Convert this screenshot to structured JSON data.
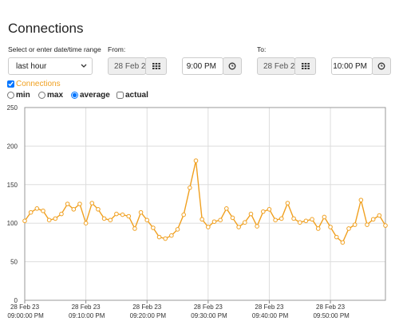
{
  "header": {
    "title": "Connections"
  },
  "controls": {
    "range_label": "Select or enter date/time range",
    "range_value": "last hour",
    "from_label": "From:",
    "from_date": "28 Feb 2",
    "from_time": "9:00 PM",
    "to_label": "To:",
    "to_date": "28 Feb 2",
    "to_time": "10:00 PM"
  },
  "series_toggle": {
    "label": "Connections",
    "checked": true
  },
  "modes": {
    "options": [
      "min",
      "max",
      "average",
      "actual"
    ],
    "selected": 2
  },
  "chart_data": {
    "type": "line",
    "color": "#f0a020",
    "grid": true,
    "x": [
      "28 Feb 23 09:00:00 PM",
      "28 Feb 23 09:01:00 PM",
      "28 Feb 23 09:02:00 PM",
      "28 Feb 23 09:03:00 PM",
      "28 Feb 23 09:04:00 PM",
      "28 Feb 23 09:05:00 PM",
      "28 Feb 23 09:06:00 PM",
      "28 Feb 23 09:07:00 PM",
      "28 Feb 23 09:08:00 PM",
      "28 Feb 23 09:09:00 PM",
      "28 Feb 23 09:10:00 PM",
      "28 Feb 23 09:11:00 PM",
      "28 Feb 23 09:12:00 PM",
      "28 Feb 23 09:13:00 PM",
      "28 Feb 23 09:14:00 PM",
      "28 Feb 23 09:15:00 PM",
      "28 Feb 23 09:16:00 PM",
      "28 Feb 23 09:17:00 PM",
      "28 Feb 23 09:18:00 PM",
      "28 Feb 23 09:19:00 PM",
      "28 Feb 23 09:20:00 PM",
      "28 Feb 23 09:21:00 PM",
      "28 Feb 23 09:22:00 PM",
      "28 Feb 23 09:23:00 PM",
      "28 Feb 23 09:24:00 PM",
      "28 Feb 23 09:25:00 PM",
      "28 Feb 23 09:26:00 PM",
      "28 Feb 23 09:27:00 PM",
      "28 Feb 23 09:28:00 PM",
      "28 Feb 23 09:29:00 PM",
      "28 Feb 23 09:30:00 PM",
      "28 Feb 23 09:31:00 PM",
      "28 Feb 23 09:32:00 PM",
      "28 Feb 23 09:33:00 PM",
      "28 Feb 23 09:34:00 PM",
      "28 Feb 23 09:35:00 PM",
      "28 Feb 23 09:36:00 PM",
      "28 Feb 23 09:37:00 PM",
      "28 Feb 23 09:38:00 PM",
      "28 Feb 23 09:39:00 PM",
      "28 Feb 23 09:40:00 PM",
      "28 Feb 23 09:41:00 PM",
      "28 Feb 23 09:42:00 PM",
      "28 Feb 23 09:43:00 PM",
      "28 Feb 23 09:44:00 PM",
      "28 Feb 23 09:45:00 PM",
      "28 Feb 23 09:46:00 PM",
      "28 Feb 23 09:47:00 PM",
      "28 Feb 23 09:48:00 PM",
      "28 Feb 23 09:49:00 PM",
      "28 Feb 23 09:50:00 PM",
      "28 Feb 23 09:51:00 PM",
      "28 Feb 23 09:52:00 PM",
      "28 Feb 23 09:53:00 PM",
      "28 Feb 23 09:54:00 PM",
      "28 Feb 23 09:55:00 PM",
      "28 Feb 23 09:56:00 PM",
      "28 Feb 23 09:57:00 PM",
      "28 Feb 23 09:58:00 PM",
      "28 Feb 23 09:59:00 PM"
    ],
    "values": [
      103,
      114,
      119,
      116,
      104,
      106,
      112,
      125,
      118,
      125,
      100,
      126,
      118,
      106,
      104,
      112,
      111,
      109,
      93,
      114,
      104,
      94,
      82,
      80,
      84,
      92,
      111,
      146,
      181,
      105,
      95,
      102,
      104,
      119,
      107,
      95,
      101,
      112,
      96,
      115,
      118,
      104,
      106,
      126,
      106,
      101,
      103,
      105,
      93,
      108,
      95,
      82,
      75,
      93,
      98,
      130,
      98,
      105,
      110,
      97
    ],
    "xlim": [
      "28 Feb 23 09:00:00 PM",
      "28 Feb 23 09:59:00 PM"
    ],
    "xticks": [
      "28 Feb 23 09:00:00 PM",
      "28 Feb 23 09:10:00 PM",
      "28 Feb 23 09:20:00 PM",
      "28 Feb 23 09:30:00 PM",
      "28 Feb 23 09:40:00 PM",
      "28 Feb 23 09:50:00 PM"
    ],
    "ylim": [
      0,
      250
    ],
    "yticks": [
      0,
      50,
      100,
      150,
      200,
      250
    ]
  }
}
